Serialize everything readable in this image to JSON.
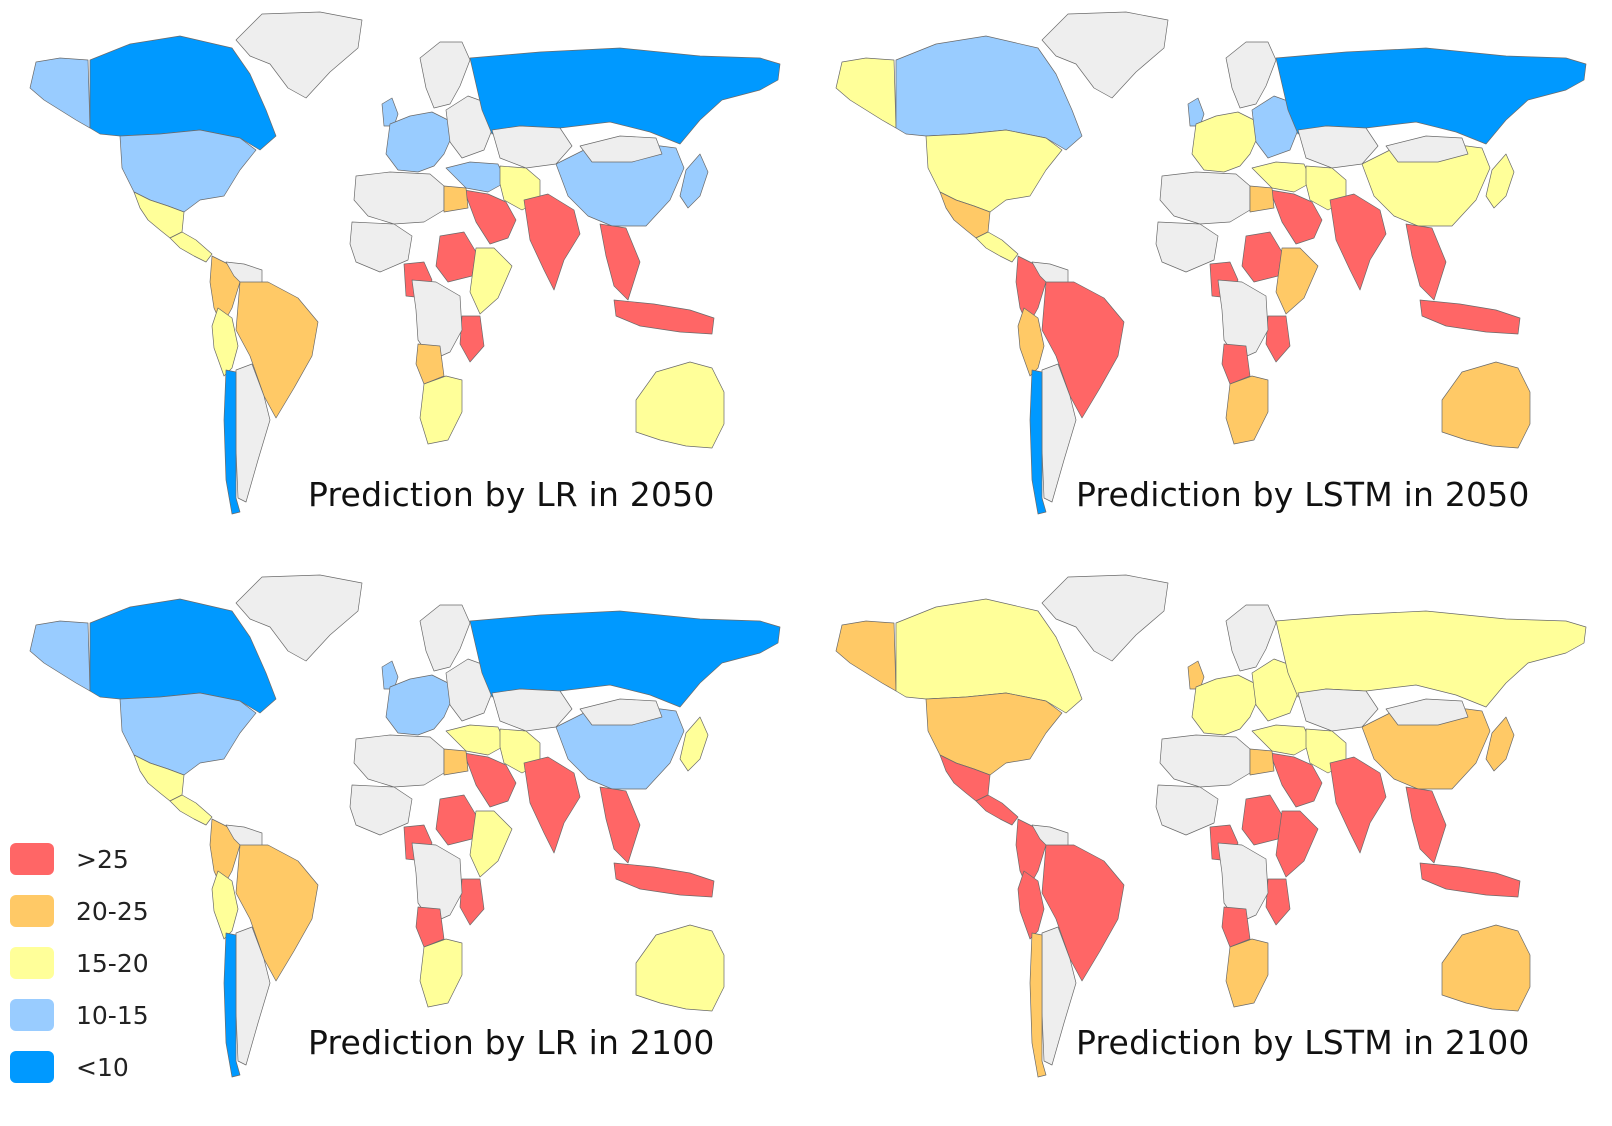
{
  "colors": {
    "gt25": "#ff6666",
    "20_25": "#ffc966",
    "15_20": "#ffff99",
    "10_15": "#99ccff",
    "lt10": "#0099ff",
    "nodata": "#eeeeee"
  },
  "legend": {
    "items": [
      {
        "label": ">25",
        "color_key": "gt25"
      },
      {
        "label": "20-25",
        "color_key": "20_25"
      },
      {
        "label": "15-20",
        "color_key": "15_20"
      },
      {
        "label": "10-15",
        "color_key": "10_15"
      },
      {
        "label": "<10",
        "color_key": "lt10"
      }
    ]
  },
  "panels": [
    {
      "caption": "Prediction by LR in 2050",
      "regions": {
        "greenland": "nodata",
        "alaska": "10_15",
        "canada": "lt10",
        "usa": "10_15",
        "mexico": "15_20",
        "central_america": "15_20",
        "colombia": "20_25",
        "venezuela": "nodata",
        "peru": "15_20",
        "brazil": "20_25",
        "argentina": "nodata",
        "chile": "lt10",
        "uk": "10_15",
        "west_europe": "10_15",
        "scandinavia": "nodata",
        "east_europe": "nodata",
        "russia": "lt10",
        "kazakhstan": "nodata",
        "middle_east": "10_15",
        "iran": "15_20",
        "saudi": "gt25",
        "north_africa": "nodata",
        "egypt": "20_25",
        "sudan": "gt25",
        "west_africa": "nodata",
        "nigeria": "gt25",
        "east_africa": "15_20",
        "tanzania": "gt25",
        "central_africa": "nodata",
        "angola": "20_25",
        "south_africa": "15_20",
        "india": "gt25",
        "china": "10_15",
        "mongolia": "nodata",
        "japan": "10_15",
        "se_asia": "gt25",
        "indonesia": "gt25",
        "australia": "15_20"
      }
    },
    {
      "caption": "Prediction by LSTM in 2050",
      "regions": {
        "greenland": "nodata",
        "alaska": "15_20",
        "canada": "10_15",
        "usa": "15_20",
        "mexico": "20_25",
        "central_america": "15_20",
        "colombia": "gt25",
        "venezuela": "nodata",
        "peru": "20_25",
        "brazil": "gt25",
        "argentina": "nodata",
        "chile": "lt10",
        "uk": "10_15",
        "west_europe": "15_20",
        "scandinavia": "nodata",
        "east_europe": "10_15",
        "russia": "lt10",
        "kazakhstan": "nodata",
        "middle_east": "15_20",
        "iran": "15_20",
        "saudi": "gt25",
        "north_africa": "nodata",
        "egypt": "20_25",
        "sudan": "gt25",
        "west_africa": "nodata",
        "nigeria": "gt25",
        "east_africa": "20_25",
        "tanzania": "gt25",
        "central_africa": "nodata",
        "angola": "gt25",
        "south_africa": "20_25",
        "india": "gt25",
        "china": "15_20",
        "mongolia": "nodata",
        "japan": "15_20",
        "se_asia": "gt25",
        "indonesia": "gt25",
        "australia": "20_25"
      }
    },
    {
      "caption": "Prediction by LR in 2100",
      "regions": {
        "greenland": "nodata",
        "alaska": "10_15",
        "canada": "lt10",
        "usa": "10_15",
        "mexico": "15_20",
        "central_america": "15_20",
        "colombia": "20_25",
        "venezuela": "nodata",
        "peru": "15_20",
        "brazil": "20_25",
        "argentina": "nodata",
        "chile": "lt10",
        "uk": "10_15",
        "west_europe": "10_15",
        "scandinavia": "nodata",
        "east_europe": "nodata",
        "russia": "lt10",
        "kazakhstan": "nodata",
        "middle_east": "15_20",
        "iran": "15_20",
        "saudi": "gt25",
        "north_africa": "nodata",
        "egypt": "20_25",
        "sudan": "gt25",
        "west_africa": "nodata",
        "nigeria": "gt25",
        "east_africa": "15_20",
        "tanzania": "gt25",
        "central_africa": "nodata",
        "angola": "gt25",
        "south_africa": "15_20",
        "india": "gt25",
        "china": "10_15",
        "mongolia": "nodata",
        "japan": "15_20",
        "se_asia": "gt25",
        "indonesia": "gt25",
        "australia": "15_20"
      }
    },
    {
      "caption": "Prediction by LSTM in 2100",
      "regions": {
        "greenland": "nodata",
        "alaska": "20_25",
        "canada": "15_20",
        "usa": "20_25",
        "mexico": "gt25",
        "central_america": "gt25",
        "colombia": "gt25",
        "venezuela": "nodata",
        "peru": "gt25",
        "brazil": "gt25",
        "argentina": "nodata",
        "chile": "20_25",
        "uk": "20_25",
        "west_europe": "15_20",
        "scandinavia": "nodata",
        "east_europe": "15_20",
        "russia": "15_20",
        "kazakhstan": "nodata",
        "middle_east": "15_20",
        "iran": "15_20",
        "saudi": "gt25",
        "north_africa": "nodata",
        "egypt": "20_25",
        "sudan": "gt25",
        "west_africa": "nodata",
        "nigeria": "gt25",
        "east_africa": "gt25",
        "tanzania": "gt25",
        "central_africa": "nodata",
        "angola": "gt25",
        "south_africa": "20_25",
        "india": "gt25",
        "china": "20_25",
        "mongolia": "nodata",
        "japan": "20_25",
        "se_asia": "gt25",
        "indonesia": "gt25",
        "australia": "20_25"
      }
    }
  ]
}
